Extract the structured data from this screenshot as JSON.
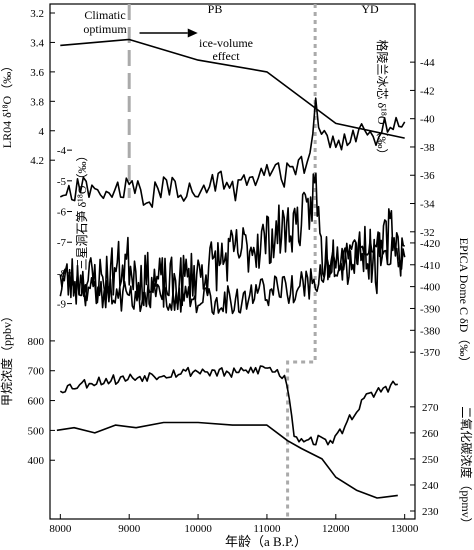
{
  "chart_data": {
    "type": "line",
    "x_axis": {
      "label": "年龄（a B.P.）",
      "range": [
        7850,
        13150
      ],
      "reversed": false,
      "ticks": [
        8000,
        9000,
        10000,
        11000,
        12000,
        13000
      ]
    },
    "axes": {
      "lr04": {
        "label": "LR04 δ¹⁸O（‰）",
        "side": "left",
        "range": [
          3.2,
          4.45
        ],
        "reversed": true,
        "ticks": [
          3.2,
          3.4,
          3.6,
          3.8,
          4,
          4.2
        ]
      },
      "greenland": {
        "label": "格陵兰冰芯 δ¹⁸O（‰）",
        "side": "right",
        "range": [
          -30.5,
          -45
        ],
        "reversed": false,
        "ticks": [
          -32,
          -34,
          -36,
          -38,
          -40,
          -42,
          -44
        ]
      },
      "sanxing": {
        "label": "三星洞石笋 δ¹⁸O（‰）",
        "side": "left-inner",
        "range": [
          -9.6,
          -3.8
        ],
        "reversed": false,
        "ticks": [
          -9,
          -8,
          -7,
          -6,
          -5,
          -4
        ]
      },
      "epica": {
        "label": "EPICA Dome C δD（‰）",
        "side": "right",
        "range": [
          -360,
          -425
        ],
        "reversed": false,
        "ticks": [
          -370,
          -380,
          -390,
          -400,
          -410,
          -420
        ]
      },
      "methane": {
        "label": "甲烷浓度（ppbv）",
        "side": "left",
        "range": [
          250,
          870
        ],
        "reversed": false,
        "ticks": [
          400,
          500,
          600,
          700,
          800
        ]
      },
      "co2": {
        "label": "二氧化碳浓度（ppmv）",
        "side": "right",
        "range": [
          230,
          283
        ],
        "reversed": false,
        "ticks": [
          230,
          240,
          250,
          260,
          270
        ]
      }
    },
    "annotations": [
      {
        "text": "Climatic",
        "x": 8500
      },
      {
        "text": "optimum",
        "x": 8500
      },
      {
        "text": "PB",
        "x": 10300
      },
      {
        "text": "ice-volume",
        "x": 10300
      },
      {
        "text": "effect",
        "x": 10300
      },
      {
        "text": "YD",
        "x": 12550
      }
    ],
    "boundaries": [
      {
        "x": 9000,
        "style": "dashed"
      },
      {
        "x": 11700,
        "style": "dotted",
        "to": 11300
      }
    ],
    "arrow": {
      "from": 9150,
      "to": 9850
    },
    "series": [
      {
        "axis": "lr04",
        "x": [
          8000,
          9000,
          10000,
          11000,
          12000,
          13000
        ],
        "values": [
          3.42,
          3.38,
          3.52,
          3.6,
          3.95,
          4.05
        ]
      },
      {
        "axis": "greenland",
        "x": [
          8000,
          8300,
          8600,
          9000,
          9300,
          9600,
          10000,
          10300,
          10600,
          11000,
          11300,
          11500,
          11600,
          11700,
          11800,
          12000,
          12200,
          12400,
          12600,
          12800,
          13000
        ],
        "values": [
          -34,
          -35.2,
          -34.6,
          -35,
          -34.5,
          -35.3,
          -34.6,
          -35.5,
          -35,
          -36.2,
          -36,
          -37,
          -37,
          -40.8,
          -38.5,
          -38.8,
          -38.2,
          -39.3,
          -38.8,
          -39.8,
          -39
        ]
      },
      {
        "axis": "sanxing",
        "x": [
          8000,
          8600,
          9000,
          9200,
          9600,
          10000,
          10500,
          11000,
          11400,
          11600,
          11700,
          11800,
          12000,
          12200,
          12400,
          12600,
          12800,
          13000
        ],
        "values": [
          -8.3,
          -8.2,
          -7.6,
          -8.2,
          -8.4,
          -8,
          -7.4,
          -6.9,
          -6.4,
          -6.2,
          -5,
          -7.5,
          -7.3,
          -7.6,
          -7.1,
          -7.8,
          -6.5,
          -7.5
        ]
      },
      {
        "axis": "epica",
        "x": [
          8000,
          8500,
          9000,
          9500,
          10000,
          10500,
          11000,
          11300,
          11600,
          11800,
          12000,
          12300,
          12600,
          12900,
          13000
        ],
        "values": [
          -402,
          -398,
          -395,
          -396,
          -393,
          -394,
          -398,
          -398,
          -401,
          -405,
          -413,
          -416,
          -419,
          -415,
          -414
        ]
      },
      {
        "axis": "methane",
        "x": [
          8000,
          8500,
          9000,
          9500,
          10000,
          10500,
          11000,
          11200,
          11300,
          11400,
          11600,
          11800,
          12000,
          12200,
          12400,
          12600,
          12800,
          12900
        ],
        "values": [
          640,
          665,
          675,
          690,
          700,
          690,
          710,
          690,
          660,
          480,
          470,
          465,
          470,
          540,
          600,
          630,
          650,
          660
        ]
      },
      {
        "axis": "co2",
        "x": [
          7950,
          8200,
          8500,
          8800,
          9100,
          9500,
          10000,
          10500,
          11000,
          11300,
          11500,
          11800,
          12000,
          12300,
          12600,
          12900
        ],
        "values": [
          261,
          262,
          260,
          263,
          262,
          264,
          264,
          263,
          263,
          257,
          254,
          250,
          243,
          238,
          235,
          236
        ]
      }
    ]
  }
}
